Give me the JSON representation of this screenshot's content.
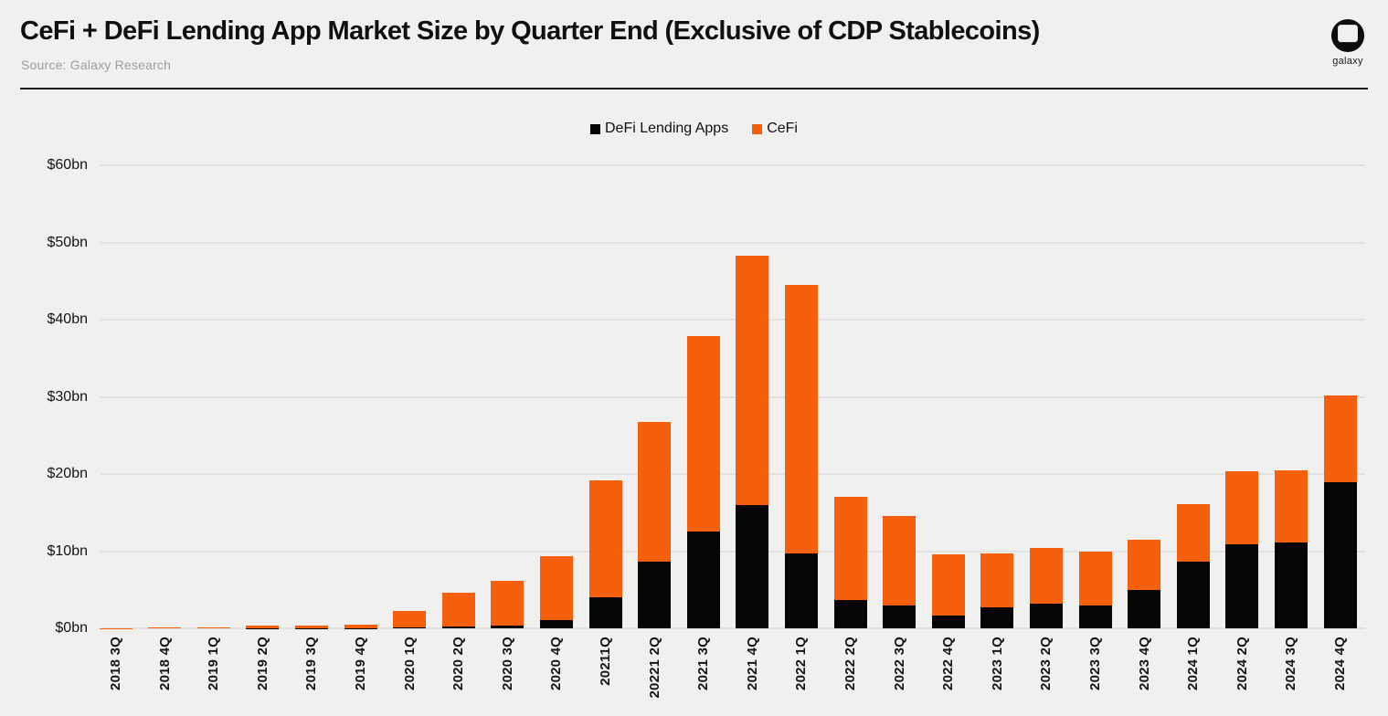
{
  "header": {
    "title": "CeFi + DeFi Lending App Market Size by Quarter End (Exclusive of CDP Stablecoins)",
    "source": "Source: Galaxy Research"
  },
  "branding": {
    "logo_text": "galaxy"
  },
  "legend": {
    "items": [
      {
        "label": "DeFi Lending Apps",
        "color": "#050505"
      },
      {
        "label": "CeFi",
        "color": "#f6600c"
      }
    ]
  },
  "chart_data": {
    "type": "bar",
    "stacked": true,
    "title": "CeFi + DeFi Lending App Market Size by Quarter End (Exclusive of CDP Stablecoins)",
    "xlabel": "",
    "ylabel": "",
    "ylim": [
      0,
      60
    ],
    "grid": true,
    "legend_position": "top-center",
    "yticks": {
      "values": [
        0,
        10,
        20,
        30,
        40,
        50,
        60
      ],
      "labels": [
        "$0bn",
        "$10bn",
        "$20bn",
        "$30bn",
        "$40bn",
        "$50bn",
        "$60bn"
      ]
    },
    "categories": [
      "2018 3Q",
      "2018 4Q",
      "2019 1Q",
      "2019 2Q",
      "2019 3Q",
      "2019 4Q",
      "2020 1Q",
      "2020 2Q",
      "2020 3Q",
      "2020 4Q",
      "20211Q",
      "20221 2Q",
      "2021 3Q",
      "2021 4Q",
      "2022 1Q",
      "2022 2Q",
      "2022 3Q",
      "2022 4Q",
      "2023 1Q",
      "2023 2Q",
      "2023 3Q",
      "2023 4Q",
      "2024 1Q",
      "2024 2Q",
      "2024 3Q",
      "2024 4Q"
    ],
    "series": [
      {
        "name": "DeFi Lending Apps",
        "color": "#050505",
        "values": [
          0,
          0,
          0,
          0.05,
          0.05,
          0.05,
          0.1,
          0.25,
          0.35,
          1.1,
          4.0,
          8.6,
          12.6,
          16.0,
          9.7,
          3.7,
          3.0,
          1.7,
          2.7,
          3.2,
          3.0,
          5.0,
          8.6,
          10.9,
          11.1,
          18.9
        ]
      },
      {
        "name": "CeFi",
        "color": "#f6600c",
        "values": [
          0.05,
          0.15,
          0.15,
          0.35,
          0.35,
          0.45,
          2.2,
          4.35,
          5.75,
          8.3,
          15.2,
          18.1,
          25.3,
          32.3,
          34.8,
          13.3,
          11.5,
          7.9,
          7.0,
          7.2,
          7.0,
          6.5,
          7.5,
          9.4,
          9.4,
          11.3
        ]
      }
    ]
  }
}
